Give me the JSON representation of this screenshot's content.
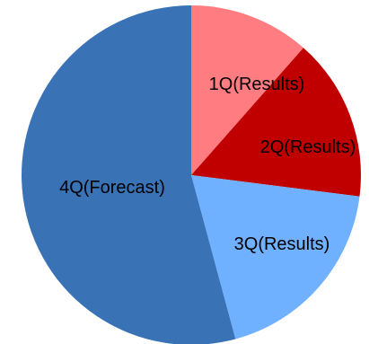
{
  "chart_data": {
    "type": "pie",
    "title": "",
    "categories": [
      "1Q(Results)",
      "2Q(Results)",
      "3Q(Results)",
      "4Q(Forecast)"
    ],
    "values": [
      11.5,
      15.5,
      18.8,
      54.2
    ],
    "colors": [
      "#FF7C80",
      "#C00000",
      "#6FB1FF",
      "#3A72B6"
    ],
    "start_angle_deg": 0,
    "direction": "clockwise",
    "legend": "none"
  }
}
